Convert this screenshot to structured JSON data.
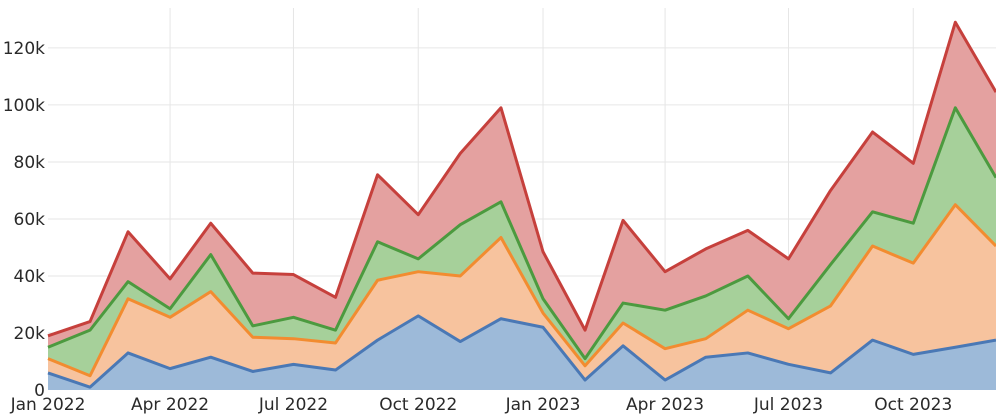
{
  "chart_data": {
    "type": "area",
    "stacked": true,
    "grid": true,
    "legend": "none",
    "x": [
      "2022-01-01",
      "2022-02-01",
      "2022-03-01",
      "2022-04-01",
      "2022-05-01",
      "2022-06-01",
      "2022-07-01",
      "2022-08-01",
      "2022-09-01",
      "2022-10-01",
      "2022-11-01",
      "2022-12-01",
      "2023-01-01",
      "2023-02-01",
      "2023-03-01",
      "2023-04-01",
      "2023-05-01",
      "2023-06-01",
      "2023-07-01",
      "2023-08-01",
      "2023-09-01",
      "2023-10-01",
      "2023-11-01",
      "2023-12-01"
    ],
    "xlim": [
      "2022-01-01",
      "2023-12-01"
    ],
    "xticks": [
      {
        "value": "2022-01-01",
        "label": "Jan 2022"
      },
      {
        "value": "2022-04-01",
        "label": "Apr 2022"
      },
      {
        "value": "2022-07-01",
        "label": "Jul 2022"
      },
      {
        "value": "2022-10-01",
        "label": "Oct 2022"
      },
      {
        "value": "2023-01-01",
        "label": "Jan 2023"
      },
      {
        "value": "2023-04-01",
        "label": "Apr 2023"
      },
      {
        "value": "2023-07-01",
        "label": "Jul 2023"
      },
      {
        "value": "2023-10-01",
        "label": "Oct 2023"
      }
    ],
    "ylim": [
      0,
      134000
    ],
    "yticks": [
      {
        "value": 0,
        "label": "0"
      },
      {
        "value": 20000,
        "label": "20k"
      },
      {
        "value": 40000,
        "label": "40k"
      },
      {
        "value": 60000,
        "label": "60k"
      },
      {
        "value": 80000,
        "label": "80k"
      },
      {
        "value": 100000,
        "label": "100k"
      },
      {
        "value": 120000,
        "label": "120k"
      }
    ],
    "series": [
      {
        "line_color": "#4a78b5",
        "fill_color": "#9dbad9",
        "values": [
          6000,
          1000,
          13000,
          7500,
          11500,
          6500,
          9000,
          7000,
          17500,
          26000,
          17000,
          25000,
          22000,
          3500,
          15500,
          3500,
          11500,
          13000,
          9000,
          6000,
          17500,
          12500,
          15000,
          17500
        ]
      },
      {
        "line_color": "#f28c30",
        "fill_color": "#f7c39e",
        "values": [
          5000,
          4000,
          19000,
          18000,
          23000,
          12000,
          9000,
          9500,
          21000,
          15500,
          23000,
          28500,
          5000,
          5000,
          8000,
          11000,
          6500,
          15000,
          12500,
          23500,
          33000,
          32000,
          50000,
          33000
        ]
      },
      {
        "line_color": "#4c9a3f",
        "fill_color": "#a6d09a",
        "values": [
          4000,
          16000,
          6000,
          3000,
          13000,
          4000,
          7500,
          4500,
          13500,
          4500,
          18000,
          12500,
          5000,
          2500,
          7000,
          13500,
          15000,
          12000,
          3500,
          14500,
          12000,
          14000,
          34000,
          24000
        ]
      },
      {
        "line_color": "#c6403c",
        "fill_color": "#e4a1a0",
        "values": [
          4000,
          3000,
          17500,
          10500,
          11000,
          18500,
          15000,
          11500,
          23500,
          15500,
          25000,
          33000,
          16500,
          10000,
          29000,
          13500,
          16500,
          16000,
          21000,
          26000,
          28000,
          21000,
          30000,
          30000
        ]
      }
    ]
  }
}
